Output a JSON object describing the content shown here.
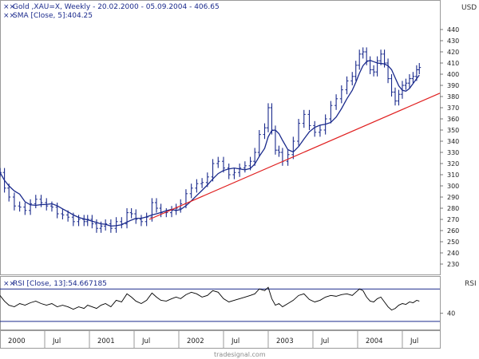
{
  "chart_data": [
    {
      "type": "line",
      "style": "ohlc-bars",
      "legend": [
        {
          "text": "Gold ,XAU=X, Weekly - 20.02.2000 - 05.09.2004 - 406.65",
          "color": "#1a2a8c"
        },
        {
          "text": "SMA [Close, 5]:404.25",
          "color": "#1a2a8c"
        }
      ],
      "ylabel": "USD",
      "ylim": [
        220,
        450
      ],
      "yticks": [
        "230",
        "240",
        "250",
        "260",
        "270",
        "280",
        "290",
        "300",
        "310",
        "320",
        "330",
        "340",
        "350",
        "360",
        "370",
        "380",
        "390",
        "400",
        "410",
        "420",
        "430",
        "440"
      ],
      "x_range": [
        2000.0,
        2004.92
      ],
      "grid": false,
      "series_color": "#1a2a8c",
      "sma_color": "#1a2a8c",
      "price": [
        [
          2000.0,
          312
        ],
        [
          2000.05,
          298
        ],
        [
          2000.1,
          290
        ],
        [
          2000.16,
          282
        ],
        [
          2000.22,
          281
        ],
        [
          2000.28,
          278
        ],
        [
          2000.34,
          284
        ],
        [
          2000.4,
          288
        ],
        [
          2000.46,
          285
        ],
        [
          2000.52,
          282
        ],
        [
          2000.58,
          281
        ],
        [
          2000.64,
          275
        ],
        [
          2000.7,
          274
        ],
        [
          2000.76,
          272
        ],
        [
          2000.82,
          268
        ],
        [
          2000.88,
          270
        ],
        [
          2000.94,
          268
        ],
        [
          2000.98,
          270
        ],
        [
          2001.03,
          266
        ],
        [
          2001.08,
          262
        ],
        [
          2001.13,
          264
        ],
        [
          2001.18,
          266
        ],
        [
          2001.24,
          262
        ],
        [
          2001.3,
          268
        ],
        [
          2001.36,
          266
        ],
        [
          2001.42,
          276
        ],
        [
          2001.47,
          275
        ],
        [
          2001.52,
          270
        ],
        [
          2001.58,
          268
        ],
        [
          2001.64,
          272
        ],
        [
          2001.7,
          285
        ],
        [
          2001.75,
          280
        ],
        [
          2001.8,
          276
        ],
        [
          2001.86,
          276
        ],
        [
          2001.92,
          278
        ],
        [
          2001.97,
          280
        ],
        [
          2002.02,
          284
        ],
        [
          2002.08,
          293
        ],
        [
          2002.14,
          298
        ],
        [
          2002.2,
          302
        ],
        [
          2002.26,
          303
        ],
        [
          2002.32,
          308
        ],
        [
          2002.38,
          320
        ],
        [
          2002.44,
          322
        ],
        [
          2002.5,
          316
        ],
        [
          2002.56,
          310
        ],
        [
          2002.62,
          312
        ],
        [
          2002.68,
          316
        ],
        [
          2002.74,
          318
        ],
        [
          2002.8,
          322
        ],
        [
          2002.85,
          330
        ],
        [
          2002.9,
          346
        ],
        [
          2002.96,
          352
        ],
        [
          2003.0,
          370
        ],
        [
          2003.04,
          350
        ],
        [
          2003.08,
          332
        ],
        [
          2003.12,
          330
        ],
        [
          2003.16,
          322
        ],
        [
          2003.22,
          328
        ],
        [
          2003.28,
          340
        ],
        [
          2003.34,
          356
        ],
        [
          2003.4,
          364
        ],
        [
          2003.46,
          354
        ],
        [
          2003.52,
          348
        ],
        [
          2003.58,
          350
        ],
        [
          2003.64,
          360
        ],
        [
          2003.7,
          372
        ],
        [
          2003.76,
          378
        ],
        [
          2003.82,
          386
        ],
        [
          2003.88,
          394
        ],
        [
          2003.94,
          398
        ],
        [
          2003.98,
          408
        ],
        [
          2004.02,
          418
        ],
        [
          2004.06,
          420
        ],
        [
          2004.1,
          412
        ],
        [
          2004.14,
          404
        ],
        [
          2004.18,
          402
        ],
        [
          2004.22,
          412
        ],
        [
          2004.26,
          418
        ],
        [
          2004.3,
          410
        ],
        [
          2004.34,
          396
        ],
        [
          2004.38,
          384
        ],
        [
          2004.42,
          376
        ],
        [
          2004.46,
          382
        ],
        [
          2004.5,
          390
        ],
        [
          2004.54,
          392
        ],
        [
          2004.58,
          396
        ],
        [
          2004.62,
          398
        ],
        [
          2004.66,
          404
        ],
        [
          2004.69,
          406
        ]
      ],
      "trendline": [
        [
          2001.67,
          270
        ],
        [
          2004.92,
          383
        ]
      ],
      "trendline_color": "#e02020",
      "xticks": [
        "2000",
        "Jul",
        "2001",
        "Jul",
        "2002",
        "Jul",
        "2003",
        "Jul",
        "2004",
        "Jul"
      ],
      "xtick_positions": [
        2000.0,
        2000.5,
        2001.0,
        2001.5,
        2002.0,
        2002.5,
        2003.0,
        2003.5,
        2004.0,
        2004.5
      ]
    },
    {
      "type": "line",
      "legend": [
        {
          "text": "RSI [Close, 13]:54.667185",
          "color": "#1a2a8c"
        }
      ],
      "ylabel": "RSI",
      "ylim": [
        20,
        85
      ],
      "yticks": [
        "40"
      ],
      "reference_lines": [
        30,
        70
      ],
      "reference_color": "#1a2a8c",
      "series_color": "#000000",
      "rsi": [
        [
          2000.0,
          62
        ],
        [
          2000.05,
          55
        ],
        [
          2000.1,
          50
        ],
        [
          2000.16,
          48
        ],
        [
          2000.22,
          52
        ],
        [
          2000.28,
          50
        ],
        [
          2000.34,
          53
        ],
        [
          2000.4,
          55
        ],
        [
          2000.46,
          52
        ],
        [
          2000.52,
          50
        ],
        [
          2000.58,
          52
        ],
        [
          2000.64,
          48
        ],
        [
          2000.7,
          50
        ],
        [
          2000.76,
          48
        ],
        [
          2000.82,
          45
        ],
        [
          2000.88,
          48
        ],
        [
          2000.94,
          46
        ],
        [
          2000.98,
          50
        ],
        [
          2001.03,
          48
        ],
        [
          2001.08,
          46
        ],
        [
          2001.13,
          50
        ],
        [
          2001.18,
          52
        ],
        [
          2001.24,
          48
        ],
        [
          2001.3,
          56
        ],
        [
          2001.36,
          54
        ],
        [
          2001.42,
          64
        ],
        [
          2001.47,
          60
        ],
        [
          2001.52,
          55
        ],
        [
          2001.58,
          52
        ],
        [
          2001.64,
          56
        ],
        [
          2001.7,
          65
        ],
        [
          2001.75,
          60
        ],
        [
          2001.8,
          56
        ],
        [
          2001.86,
          55
        ],
        [
          2001.92,
          58
        ],
        [
          2001.97,
          60
        ],
        [
          2002.02,
          58
        ],
        [
          2002.08,
          63
        ],
        [
          2002.14,
          66
        ],
        [
          2002.2,
          64
        ],
        [
          2002.26,
          60
        ],
        [
          2002.32,
          62
        ],
        [
          2002.38,
          68
        ],
        [
          2002.44,
          66
        ],
        [
          2002.5,
          58
        ],
        [
          2002.56,
          54
        ],
        [
          2002.62,
          56
        ],
        [
          2002.68,
          58
        ],
        [
          2002.74,
          60
        ],
        [
          2002.8,
          62
        ],
        [
          2002.85,
          64
        ],
        [
          2002.9,
          70
        ],
        [
          2002.96,
          68
        ],
        [
          2003.0,
          72
        ],
        [
          2003.04,
          58
        ],
        [
          2003.08,
          50
        ],
        [
          2003.12,
          52
        ],
        [
          2003.16,
          48
        ],
        [
          2003.22,
          52
        ],
        [
          2003.28,
          56
        ],
        [
          2003.34,
          62
        ],
        [
          2003.4,
          64
        ],
        [
          2003.46,
          57
        ],
        [
          2003.52,
          54
        ],
        [
          2003.58,
          56
        ],
        [
          2003.64,
          60
        ],
        [
          2003.7,
          62
        ],
        [
          2003.76,
          61
        ],
        [
          2003.82,
          63
        ],
        [
          2003.88,
          64
        ],
        [
          2003.94,
          62
        ],
        [
          2003.98,
          66
        ],
        [
          2004.02,
          70
        ],
        [
          2004.06,
          68
        ],
        [
          2004.1,
          60
        ],
        [
          2004.14,
          55
        ],
        [
          2004.18,
          54
        ],
        [
          2004.22,
          58
        ],
        [
          2004.26,
          60
        ],
        [
          2004.3,
          54
        ],
        [
          2004.34,
          48
        ],
        [
          2004.38,
          44
        ],
        [
          2004.42,
          46
        ],
        [
          2004.46,
          50
        ],
        [
          2004.5,
          52
        ],
        [
          2004.54,
          51
        ],
        [
          2004.58,
          54
        ],
        [
          2004.62,
          53
        ],
        [
          2004.66,
          56
        ],
        [
          2004.69,
          55
        ]
      ]
    }
  ],
  "watermark": "tradesignal.com"
}
